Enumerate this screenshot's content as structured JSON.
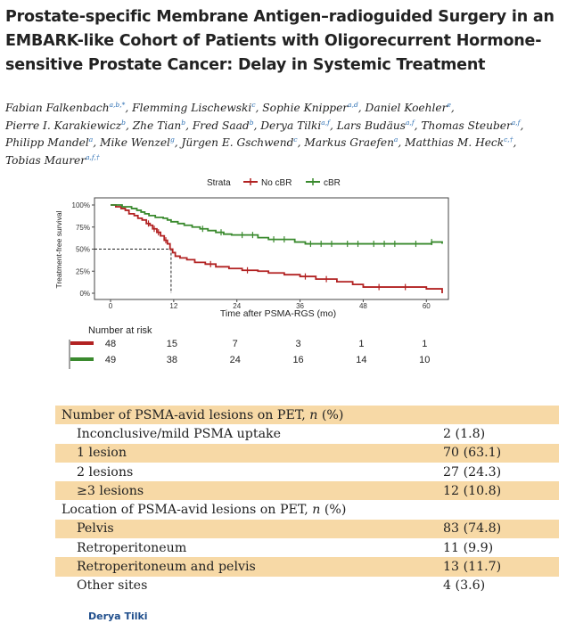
{
  "paper": {
    "title": "Prostate-specific Membrane Antigen–radioguided Surgery in an EMBARK-like Cohort of Patients with Oligorecurrent Hormone-sensitive Prostate Cancer: Delay in Systemic Treatment",
    "authors": [
      {
        "name": "Fabian Falkenbach",
        "sup": "a,b,*"
      },
      {
        "name": "Flemming Lischewski",
        "sup": "c"
      },
      {
        "name": "Sophie Knipper",
        "sup": "a,d"
      },
      {
        "name": "Daniel Koehler",
        "sup": "e"
      },
      {
        "name": "Pierre I. Karakiewicz",
        "sup": "b"
      },
      {
        "name": "Zhe Tian",
        "sup": "b"
      },
      {
        "name": "Fred Saad",
        "sup": "b"
      },
      {
        "name": "Derya Tilki",
        "sup": "a,f"
      },
      {
        "name": "Lars Budäus",
        "sup": "a,f"
      },
      {
        "name": "Thomas Steuber",
        "sup": "a,f"
      },
      {
        "name": "Philipp Mandel",
        "sup": "a"
      },
      {
        "name": "Mike Wenzel",
        "sup": "g"
      },
      {
        "name": "Jürgen E. Gschwend",
        "sup": "c"
      },
      {
        "name": "Markus Graefen",
        "sup": "a"
      },
      {
        "name": "Matthias M. Heck",
        "sup": "c,†"
      },
      {
        "name": "Tobias Maurer",
        "sup": "a,f,†"
      }
    ],
    "presenter": "Derya Tilki"
  },
  "chart_data": {
    "type": "line",
    "xlabel": "Time after PSMA-RGS (mo)",
    "ylabel": "Treatment-free survival",
    "xticks": [
      0,
      12,
      24,
      36,
      48,
      60
    ],
    "yticks": [
      "0%",
      "25%",
      "50%",
      "75%",
      "100%"
    ],
    "xlim": [
      0,
      63
    ],
    "ylim": [
      0,
      1
    ],
    "legend_title": "Strata",
    "legend_position": "top",
    "median_marker": {
      "x": 11.5,
      "y": 0.5
    },
    "series": [
      {
        "name": "No cBR",
        "color": "#b22222",
        "steps": [
          [
            0,
            1
          ],
          [
            1,
            0.98
          ],
          [
            2,
            0.96
          ],
          [
            2.8,
            0.94
          ],
          [
            3.5,
            0.9
          ],
          [
            4.5,
            0.88
          ],
          [
            5.2,
            0.85
          ],
          [
            6,
            0.83
          ],
          [
            6.8,
            0.79
          ],
          [
            7.5,
            0.77
          ],
          [
            8,
            0.73
          ],
          [
            8.8,
            0.69
          ],
          [
            9.5,
            0.65
          ],
          [
            10.2,
            0.6
          ],
          [
            10.8,
            0.56
          ],
          [
            11.3,
            0.5
          ],
          [
            11.8,
            0.46
          ],
          [
            12.3,
            0.42
          ],
          [
            13.2,
            0.4
          ],
          [
            14.5,
            0.38
          ],
          [
            16,
            0.35
          ],
          [
            18,
            0.33
          ],
          [
            20,
            0.3
          ],
          [
            22.5,
            0.28
          ],
          [
            25,
            0.26
          ],
          [
            28,
            0.25
          ],
          [
            30,
            0.23
          ],
          [
            33,
            0.21
          ],
          [
            36,
            0.19
          ],
          [
            39,
            0.16
          ],
          [
            43,
            0.13
          ],
          [
            46,
            0.1
          ],
          [
            48,
            0.07
          ],
          [
            55,
            0.07
          ],
          [
            60,
            0.05
          ],
          [
            63,
            0
          ]
        ],
        "censor_x": [
          7.2,
          8.3,
          9.1,
          10.5,
          19,
          26,
          37,
          41,
          51,
          56
        ]
      },
      {
        "name": "cBR",
        "color": "#3a8a2e",
        "steps": [
          [
            0,
            1
          ],
          [
            1.5,
            1
          ],
          [
            2.2,
            0.98
          ],
          [
            4,
            0.96
          ],
          [
            5,
            0.94
          ],
          [
            5.8,
            0.92
          ],
          [
            6.5,
            0.9
          ],
          [
            7.3,
            0.88
          ],
          [
            8.5,
            0.86
          ],
          [
            10,
            0.85
          ],
          [
            10.8,
            0.83
          ],
          [
            11.5,
            0.81
          ],
          [
            12.8,
            0.79
          ],
          [
            14,
            0.77
          ],
          [
            15.5,
            0.75
          ],
          [
            17,
            0.73
          ],
          [
            18.5,
            0.71
          ],
          [
            20,
            0.69
          ],
          [
            21.5,
            0.67
          ],
          [
            23,
            0.66
          ],
          [
            28,
            0.63
          ],
          [
            30,
            0.61
          ],
          [
            35,
            0.58
          ],
          [
            37,
            0.56
          ],
          [
            61,
            0.58
          ],
          [
            63,
            0.56
          ]
        ],
        "censor_x": [
          17.5,
          21,
          25,
          27,
          31,
          33,
          38,
          40,
          42,
          45,
          47,
          50,
          52,
          54,
          58,
          61
        ]
      }
    ],
    "risk_table": {
      "title": "Number at risk",
      "rows": [
        {
          "color": "#b22222",
          "values": [
            "48",
            "15",
            "7",
            "3",
            "1",
            "1"
          ]
        },
        {
          "color": "#3a8a2e",
          "values": [
            "49",
            "38",
            "24",
            "16",
            "14",
            "10"
          ]
        }
      ]
    }
  },
  "table": {
    "rows": [
      {
        "label": "Number of PSMA-avid lesions on PET, ",
        "italic": "n",
        "suffix": " (%)",
        "value": "",
        "band": true,
        "sub": false
      },
      {
        "label": "Inconclusive/mild PSMA uptake",
        "value": "2 (1.8)",
        "band": false,
        "sub": true
      },
      {
        "label": "1 lesion",
        "value": "70 (63.1)",
        "band": true,
        "sub": true
      },
      {
        "label": "2 lesions",
        "value": "27 (24.3)",
        "band": false,
        "sub": true
      },
      {
        "label": "≥3 lesions",
        "value": "12 (10.8)",
        "band": true,
        "sub": true
      },
      {
        "label": "Location of PSMA-avid lesions on PET, ",
        "italic": "n",
        "suffix": " (%)",
        "value": "",
        "band": false,
        "sub": false
      },
      {
        "label": "Pelvis",
        "value": "83 (74.8)",
        "band": true,
        "sub": true
      },
      {
        "label": "Retroperitoneum",
        "value": "11 (9.9)",
        "band": false,
        "sub": true
      },
      {
        "label": "Retroperitoneum and pelvis",
        "value": "13 (11.7)",
        "band": true,
        "sub": true
      },
      {
        "label": "Other sites",
        "value": "4 (3.6)",
        "band": false,
        "sub": true
      }
    ]
  }
}
